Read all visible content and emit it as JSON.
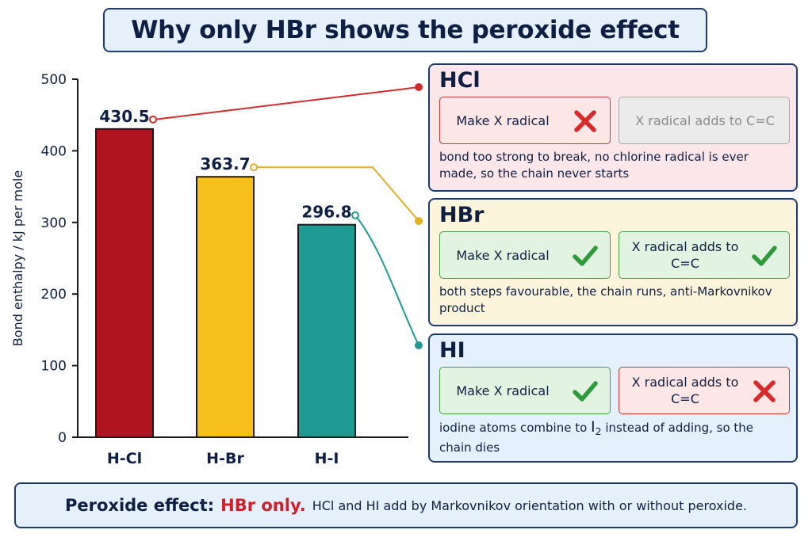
{
  "title": "Why only HBr shows the peroxide effect",
  "chart_data": {
    "type": "bar",
    "categories": [
      "H-Cl",
      "H-Br",
      "H-I"
    ],
    "values": [
      430.5,
      363.7,
      296.8
    ],
    "value_labels": [
      "430.5",
      "363.7",
      "296.8"
    ],
    "ylabel": "Bond enthalpy / kJ per mole",
    "ylim": [
      0,
      500
    ],
    "yticks": [
      0,
      100,
      200,
      300,
      400,
      500
    ],
    "colors": [
      "#b0151f",
      "#f6bf1c",
      "#1f9a93"
    ],
    "connector_colors": [
      "#d42b2b",
      "#e3b021",
      "#1f9a93"
    ],
    "grid": false
  },
  "panels": [
    {
      "name": "HCl",
      "step1": {
        "label": "Make X radical",
        "status": "bad"
      },
      "step2": {
        "label": "X radical adds to C=C",
        "status": "neutral"
      },
      "note": "bond too strong to break, no chlorine radical is ever made, so the chain never starts"
    },
    {
      "name": "HBr",
      "step1": {
        "label": "Make X radical",
        "status": "ok"
      },
      "step2": {
        "label": "X radical adds to C=C",
        "status": "ok"
      },
      "note": "both steps favourable, the chain runs, anti-Markovnikov product"
    },
    {
      "name": "HI",
      "step1": {
        "label": "Make X radical",
        "status": "ok"
      },
      "step2": {
        "label": "X radical adds to C=C",
        "status": "bad"
      },
      "note_before": "iodine atoms combine to ",
      "note_formula": "I",
      "note_sub": "2",
      "note_after": " instead of adding, so the chain dies"
    }
  ],
  "footer": {
    "lead": "Peroxide effect:",
    "emphasis": "HBr only.",
    "rest": "HCl and HI add by Markovnikov orientation with or without peroxide."
  }
}
